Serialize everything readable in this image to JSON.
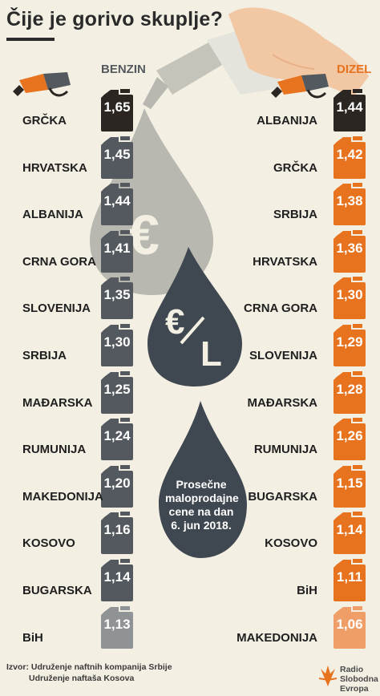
{
  "title": "Čije je gorivo skuplje?",
  "columns": {
    "left": "BENZIN",
    "right": "DIZEL"
  },
  "colors": {
    "benzin_top": "#2b2622",
    "benzin": "#53595e",
    "benzin_last": "#8f9396",
    "dizel_top": "#2b2622",
    "dizel": "#e8731f",
    "dizel_last": "#ef9e68",
    "label_benzin": "#53595e",
    "label_dizel": "#e8731f",
    "drop_light": "#b8b8b0",
    "drop_dark": "#3f4750"
  },
  "benzin": [
    {
      "country": "GRČKA",
      "value": "1,65"
    },
    {
      "country": "HRVATSKA",
      "value": "1,45"
    },
    {
      "country": "ALBANIJA",
      "value": "1,44"
    },
    {
      "country": "CRNA GORA",
      "value": "1,41"
    },
    {
      "country": "SLOVENIJA",
      "value": "1,35"
    },
    {
      "country": "SRBIJA",
      "value": "1,30"
    },
    {
      "country": "MAĐARSKA",
      "value": "1,25"
    },
    {
      "country": "RUMUNIJA",
      "value": "1,24"
    },
    {
      "country": "MAKEDONIJA",
      "value": "1,20"
    },
    {
      "country": "KOSOVO",
      "value": "1,16"
    },
    {
      "country": "BUGARSKA",
      "value": "1,14"
    },
    {
      "country": "BiH",
      "value": "1,13"
    }
  ],
  "dizel": [
    {
      "country": "ALBANIJA",
      "value": "1,44"
    },
    {
      "country": "GRČKA",
      "value": "1,42"
    },
    {
      "country": "SRBIJA",
      "value": "1,38"
    },
    {
      "country": "HRVATSKA",
      "value": "1,36"
    },
    {
      "country": "CRNA GORA",
      "value": "1,30"
    },
    {
      "country": "SLOVENIJA",
      "value": "1,29"
    },
    {
      "country": "MAĐARSKA",
      "value": "1,28"
    },
    {
      "country": "RUMUNIJA",
      "value": "1,26"
    },
    {
      "country": "BUGARSKA",
      "value": "1,15"
    },
    {
      "country": "KOSOVO",
      "value": "1,14"
    },
    {
      "country": "BiH",
      "value": "1,11"
    },
    {
      "country": "MAKEDONIJA",
      "value": "1,06"
    }
  ],
  "drop1_symbol": "€",
  "drop2_symbol_euro": "€",
  "drop2_symbol_l": "L",
  "center_note": [
    "Prosečne",
    "maloprodajne",
    "cene na dan",
    "6. jun 2018."
  ],
  "source": {
    "line1": "Izvor: Udruženje naftnih kompanija Srbije",
    "line2": "Udruženje naftaša Kosova"
  },
  "logo": {
    "line1": "Radio Slobodna",
    "line2": "Evropa"
  }
}
